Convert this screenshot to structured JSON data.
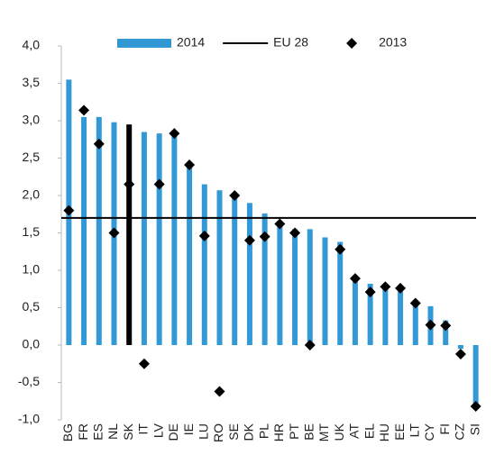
{
  "chart_data": {
    "type": "bar",
    "categories": [
      "BG",
      "FR",
      "ES",
      "NL",
      "SK",
      "IT",
      "LV",
      "DE",
      "IE",
      "LU",
      "RO",
      "SE",
      "DK",
      "PL",
      "HR",
      "PT",
      "BE",
      "MT",
      "UK",
      "AT",
      "EL",
      "HU",
      "EE",
      "LT",
      "CY",
      "FI",
      "CZ",
      "SI"
    ],
    "series": [
      {
        "name": "2014",
        "type": "bar",
        "color": "#3399d6",
        "colors": [
          "#3399d6",
          "#3399d6",
          "#3399d6",
          "#3399d6",
          "#000000",
          "#3399d6",
          "#3399d6",
          "#3399d6",
          "#3399d6",
          "#3399d6",
          "#3399d6",
          "#3399d6",
          "#3399d6",
          "#3399d6",
          "#3399d6",
          "#3399d6",
          "#3399d6",
          "#3399d6",
          "#3399d6",
          "#3399d6",
          "#3399d6",
          "#3399d6",
          "#3399d6",
          "#3399d6",
          "#3399d6",
          "#3399d6",
          "#3399d6",
          "#3399d6"
        ],
        "values": [
          3.55,
          3.05,
          3.05,
          2.98,
          2.95,
          2.85,
          2.83,
          2.85,
          2.4,
          2.15,
          2.07,
          2.0,
          1.9,
          1.76,
          1.65,
          1.55,
          1.55,
          1.44,
          1.38,
          0.93,
          0.82,
          0.8,
          0.72,
          0.6,
          0.52,
          0.33,
          -0.05,
          -0.8
        ]
      },
      {
        "name": "EU 28",
        "type": "hline",
        "color": "#000000",
        "value": 1.7
      },
      {
        "name": "2013",
        "type": "scatter",
        "color": "#000000",
        "values": [
          1.8,
          3.14,
          2.69,
          1.5,
          2.15,
          -0.25,
          2.15,
          2.83,
          2.41,
          1.46,
          -0.62,
          2.0,
          1.4,
          1.45,
          1.62,
          1.5,
          0.0,
          null,
          1.28,
          0.89,
          0.71,
          0.78,
          0.76,
          0.56,
          0.27,
          0.26,
          -0.12,
          -0.82
        ]
      }
    ],
    "ylim": [
      -1,
      4
    ],
    "yticks": [
      {
        "value": -1,
        "label": "-1,0"
      },
      {
        "value": -0.5,
        "label": "-0,5"
      },
      {
        "value": 0,
        "label": "0,0"
      },
      {
        "value": 0.5,
        "label": "0,5"
      },
      {
        "value": 1,
        "label": "1,0"
      },
      {
        "value": 1.5,
        "label": "1,5"
      },
      {
        "value": 2,
        "label": "2,0"
      },
      {
        "value": 2.5,
        "label": "2,5"
      },
      {
        "value": 3,
        "label": "3,0"
      },
      {
        "value": 3.5,
        "label": "3,5"
      },
      {
        "value": 4,
        "label": "4,0"
      }
    ],
    "grid": false,
    "legend": "top"
  }
}
